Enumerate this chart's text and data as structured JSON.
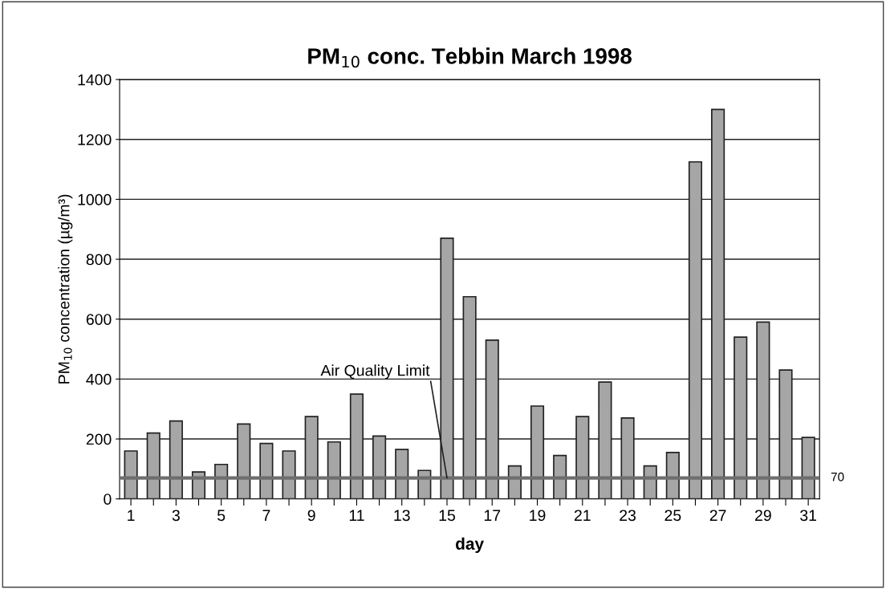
{
  "chart_data": {
    "type": "bar",
    "title": "PM$_{10}$ conc. Tebbin March 1998",
    "xlabel": "day",
    "ylabel": "PM$_{10}$ concentration (µg/m³)",
    "categories": [
      "1",
      null,
      "3",
      null,
      "5",
      null,
      "7",
      null,
      "9",
      null,
      "11",
      null,
      "13",
      null,
      "15",
      null,
      "17",
      null,
      "19",
      null,
      "21",
      null,
      "23",
      null,
      "25",
      null,
      "27",
      null,
      "29",
      null,
      "31"
    ],
    "values": [
      160,
      220,
      260,
      90,
      115,
      250,
      185,
      160,
      275,
      190,
      350,
      210,
      165,
      95,
      870,
      675,
      530,
      110,
      310,
      145,
      275,
      390,
      270,
      110,
      155,
      1125,
      1300,
      540,
      590,
      430,
      205
    ],
    "color": "#a6a6a6",
    "ylim": [
      0,
      1400
    ],
    "yticks": [
      0,
      200,
      400,
      600,
      800,
      1000,
      1200,
      1400
    ],
    "grid": "y",
    "legend": false,
    "ref_lines": [
      {
        "axis": "y",
        "value": 70,
        "label": "70",
        "color": "#6e6e6e"
      }
    ],
    "annotations": [
      {
        "text": "Air Quality Limit",
        "x": "15",
        "y": 70
      }
    ]
  }
}
